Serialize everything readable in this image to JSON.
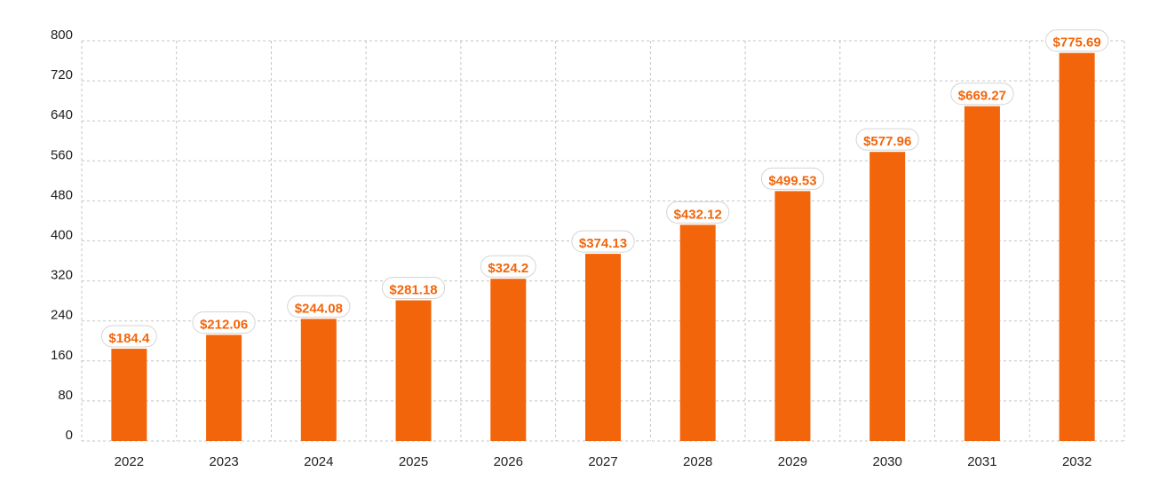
{
  "chart_data": {
    "type": "bar",
    "title": "",
    "xlabel": "",
    "ylabel": "",
    "categories": [
      "2022",
      "2023",
      "2024",
      "2025",
      "2026",
      "2027",
      "2028",
      "2029",
      "2030",
      "2031",
      "2032"
    ],
    "values": [
      184.4,
      212.06,
      244.08,
      281.18,
      324.2,
      374.13,
      432.12,
      499.53,
      577.96,
      669.27,
      775.69
    ],
    "data_labels": [
      "$184.4",
      "$212.06",
      "$244.08",
      "$281.18",
      "$324.2",
      "$374.13",
      "$432.12",
      "$499.53",
      "$577.96",
      "$669.27",
      "$775.69"
    ],
    "ylim": [
      0,
      800
    ],
    "yticks": [
      "0",
      "80",
      "160",
      "240",
      "320",
      "400",
      "480",
      "560",
      "640",
      "720",
      "800"
    ],
    "grid": true,
    "grid_style": "dashed",
    "legend": "none",
    "colors": {
      "bar": "#f2650a",
      "label_text": "#f2650a",
      "label_border": "#d5d5d5",
      "label_fill": "#ffffff",
      "grid": "#c4c4c4",
      "axis_text": "#222222"
    }
  }
}
